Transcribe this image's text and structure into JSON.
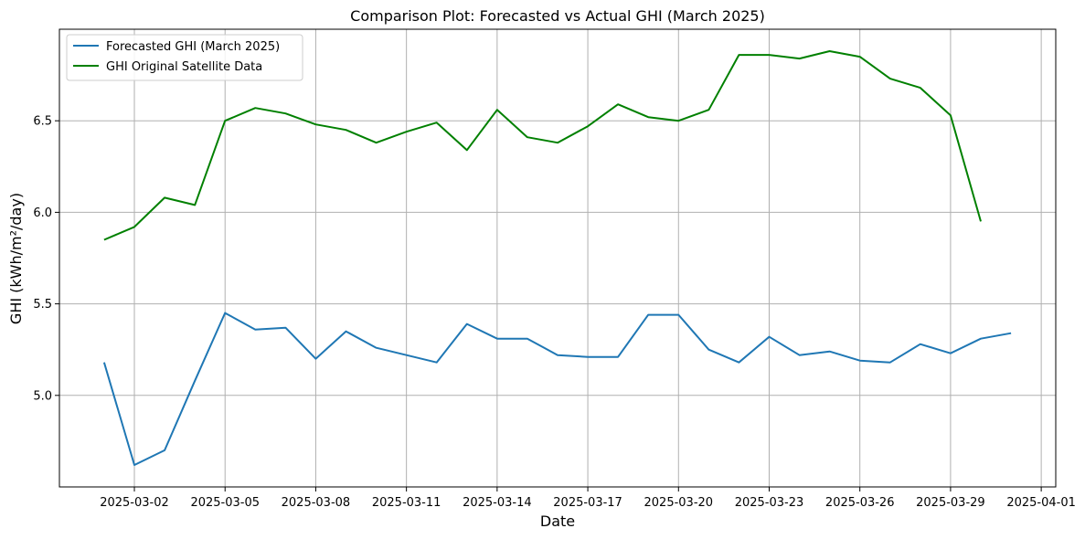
{
  "chart_data": {
    "type": "line",
    "title": "Comparison Plot: Forecasted vs Actual GHI (March 2025)",
    "xlabel": "Date",
    "ylabel": "GHI (kWh/m²/day)",
    "xlim": [
      "2025-02-28",
      "2025-04-01"
    ],
    "ylim": [
      4.5,
      7.0
    ],
    "grid": true,
    "legend_position": "top-left",
    "x_ticks": [
      "2025-03-02",
      "2025-03-05",
      "2025-03-08",
      "2025-03-11",
      "2025-03-14",
      "2025-03-17",
      "2025-03-20",
      "2025-03-23",
      "2025-03-26",
      "2025-03-29",
      "2025-04-01"
    ],
    "y_ticks": [
      5.0,
      5.5,
      6.0,
      6.5
    ],
    "series": [
      {
        "name": "Forecasted GHI (March 2025)",
        "color": "#1f77b4",
        "x": [
          "2025-03-01",
          "2025-03-02",
          "2025-03-03",
          "2025-03-04",
          "2025-03-05",
          "2025-03-06",
          "2025-03-07",
          "2025-03-08",
          "2025-03-09",
          "2025-03-10",
          "2025-03-11",
          "2025-03-12",
          "2025-03-13",
          "2025-03-14",
          "2025-03-15",
          "2025-03-16",
          "2025-03-17",
          "2025-03-18",
          "2025-03-19",
          "2025-03-20",
          "2025-03-21",
          "2025-03-22",
          "2025-03-23",
          "2025-03-24",
          "2025-03-25",
          "2025-03-26",
          "2025-03-27",
          "2025-03-28",
          "2025-03-29",
          "2025-03-30",
          "2025-03-31"
        ],
        "values": [
          5.18,
          4.62,
          4.7,
          5.08,
          5.45,
          5.36,
          5.37,
          5.2,
          5.35,
          5.26,
          5.22,
          5.18,
          5.39,
          5.31,
          5.31,
          5.22,
          5.21,
          5.21,
          5.44,
          5.44,
          5.25,
          5.18,
          5.32,
          5.22,
          5.24,
          5.19,
          5.18,
          5.28,
          5.23,
          5.31,
          5.34
        ]
      },
      {
        "name": "GHI Original Satellite Data",
        "color": "#008000",
        "x": [
          "2025-03-01",
          "2025-03-02",
          "2025-03-03",
          "2025-03-04",
          "2025-03-05",
          "2025-03-06",
          "2025-03-07",
          "2025-03-08",
          "2025-03-09",
          "2025-03-10",
          "2025-03-11",
          "2025-03-12",
          "2025-03-13",
          "2025-03-14",
          "2025-03-15",
          "2025-03-16",
          "2025-03-17",
          "2025-03-18",
          "2025-03-19",
          "2025-03-20",
          "2025-03-21",
          "2025-03-22",
          "2025-03-23",
          "2025-03-24",
          "2025-03-25",
          "2025-03-26",
          "2025-03-27",
          "2025-03-28",
          "2025-03-29",
          "2025-03-30"
        ],
        "values": [
          5.85,
          5.92,
          6.08,
          6.04,
          6.5,
          6.57,
          6.54,
          6.48,
          6.45,
          6.38,
          6.44,
          6.49,
          6.34,
          6.56,
          6.41,
          6.38,
          6.47,
          6.59,
          6.52,
          6.5,
          6.56,
          6.86,
          6.86,
          6.84,
          6.88,
          6.85,
          6.73,
          6.68,
          6.53,
          5.95
        ]
      }
    ]
  }
}
